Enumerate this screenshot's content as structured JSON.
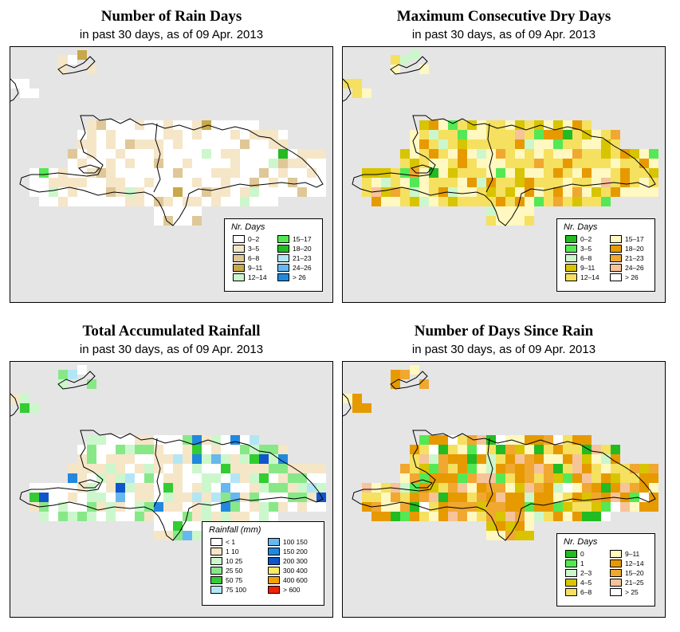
{
  "panels": [
    {
      "title": "Number of Rain Days",
      "subtitle": "in past 30 days, as of  09 Apr. 2013",
      "legend_title": "Nr. Days",
      "legend": [
        {
          "label": "0–2",
          "color": "#ffffff"
        },
        {
          "label": "3–5",
          "color": "#f5e6c8"
        },
        {
          "label": "6–8",
          "color": "#dfc797"
        },
        {
          "label": "9–11",
          "color": "#c9a84a"
        },
        {
          "label": "12–14",
          "color": "#ccf7cc"
        },
        {
          "label": "15–17",
          "color": "#55e855"
        },
        {
          "label": "18–20",
          "color": "#22bb22"
        },
        {
          "label": "21–23",
          "color": "#b3e6f5"
        },
        {
          "label": "24–26",
          "color": "#66b8ee"
        },
        {
          "label": "> 26",
          "color": "#2288dd"
        }
      ]
    },
    {
      "title": "Maximum Consecutive Dry Days",
      "subtitle": "in past 30 days, as of  09 Apr. 2013",
      "legend_title": "Nr. Days",
      "legend": [
        {
          "label": "0–2",
          "color": "#22bb22"
        },
        {
          "label": "3–5",
          "color": "#55e855"
        },
        {
          "label": "6–8",
          "color": "#ccf7cc"
        },
        {
          "label": "9–11",
          "color": "#d8c400"
        },
        {
          "label": "12–14",
          "color": "#f5e060"
        },
        {
          "label": "15–17",
          "color": "#fff8c0"
        },
        {
          "label": "18–20",
          "color": "#e69a00"
        },
        {
          "label": "21–23",
          "color": "#f0a830"
        },
        {
          "label": "24–26",
          "color": "#f7c39a"
        },
        {
          "label": "> 26",
          "color": "#ffffff"
        }
      ]
    },
    {
      "title": "Total Accumulated Rainfall",
      "subtitle": "in past 30 days, as of  09 Apr. 2013",
      "legend_title": "Rainfall (mm)",
      "legend": [
        {
          "label": "< 1",
          "color": "#ffffff"
        },
        {
          "label": "1    10",
          "color": "#f5e6c8"
        },
        {
          "label": "10    25",
          "color": "#ccf7cc"
        },
        {
          "label": "25    50",
          "color": "#88e888"
        },
        {
          "label": "50    75",
          "color": "#33cc33"
        },
        {
          "label": "75   100",
          "color": "#b3e6f5"
        },
        {
          "label": "100   150",
          "color": "#66b8ee"
        },
        {
          "label": "150   200",
          "color": "#2288dd"
        },
        {
          "label": "200   300",
          "color": "#1155cc"
        },
        {
          "label": "300   400",
          "color": "#ffe866"
        },
        {
          "label": "400   600",
          "color": "#f5a000"
        },
        {
          "label": "> 600",
          "color": "#ee2200"
        }
      ]
    },
    {
      "title": "Number of Days Since Rain",
      "subtitle": "in past 30 days, as of  09 Apr. 2013",
      "legend_title": "Nr. Days",
      "legend": [
        {
          "label": "0",
          "color": "#22bb22"
        },
        {
          "label": "1",
          "color": "#55e855"
        },
        {
          "label": "2–3",
          "color": "#ccf7cc"
        },
        {
          "label": "4–5",
          "color": "#d8c400"
        },
        {
          "label": "6–8",
          "color": "#f5e060"
        },
        {
          "label": "9–11",
          "color": "#fff8c0"
        },
        {
          "label": "12–14",
          "color": "#e69a00"
        },
        {
          "label": "15–20",
          "color": "#f0a830"
        },
        {
          "label": "21–25",
          "color": "#f7c39a"
        },
        {
          "label": "> 25",
          "color": "#ffffff"
        }
      ]
    }
  ],
  "background_color": "#e5e5e5"
}
